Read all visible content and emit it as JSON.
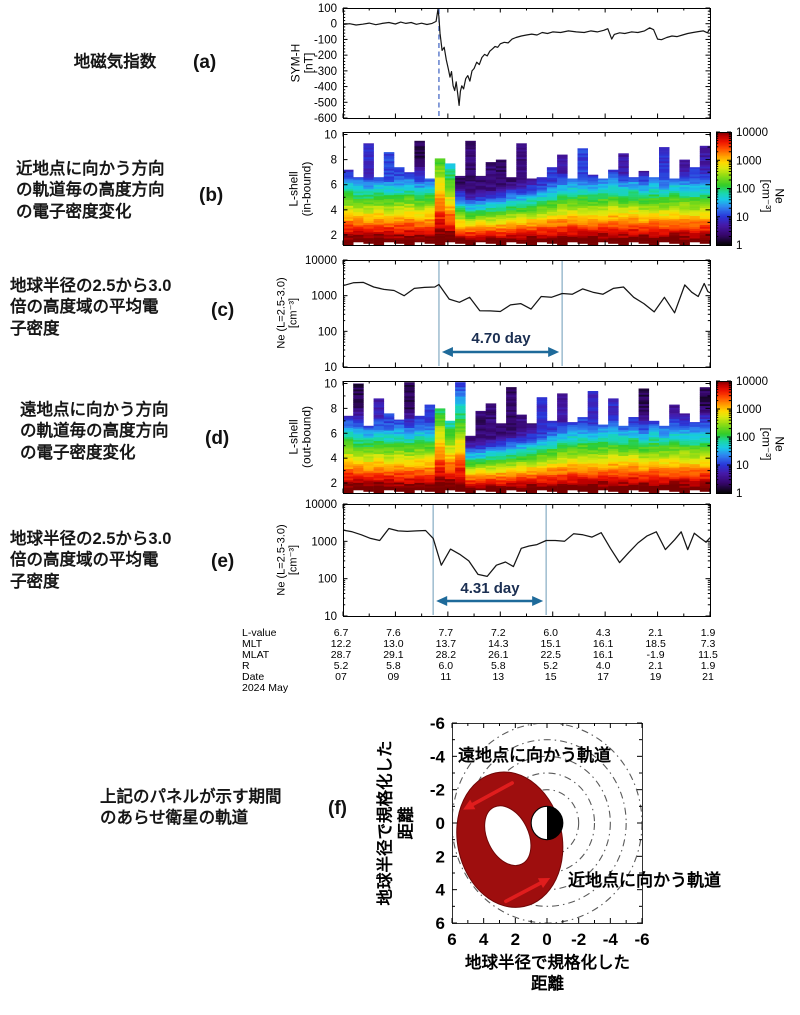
{
  "chart_data": {
    "panels": [
      {
        "id": "a",
        "type": "line",
        "letter": "(a)",
        "description": "地磁気指数",
        "ylabel": "SYM-H\n[nT]",
        "yticks": [
          100,
          0,
          -100,
          -200,
          -300,
          -400,
          -500,
          -600
        ],
        "ylim": [
          -600,
          100
        ],
        "x_range_days": [
          0,
          14
        ],
        "storm_onset_day": 3.66,
        "series_nT": [
          [
            0,
            -5
          ],
          [
            0.25,
            0
          ],
          [
            0.5,
            -8
          ],
          [
            0.75,
            -3
          ],
          [
            1,
            4
          ],
          [
            1.25,
            -6
          ],
          [
            1.5,
            2
          ],
          [
            1.75,
            8
          ],
          [
            2,
            -2
          ],
          [
            2.2,
            10
          ],
          [
            2.4,
            2
          ],
          [
            2.6,
            8
          ],
          [
            2.8,
            -4
          ],
          [
            3,
            3
          ],
          [
            3.2,
            -5
          ],
          [
            3.4,
            2
          ],
          [
            3.55,
            15
          ],
          [
            3.62,
            90
          ],
          [
            3.66,
            45
          ],
          [
            3.7,
            -60
          ],
          [
            3.78,
            -170
          ],
          [
            3.86,
            -150
          ],
          [
            3.94,
            -230
          ],
          [
            4.02,
            -290
          ],
          [
            4.08,
            -340
          ],
          [
            4.14,
            -305
          ],
          [
            4.2,
            -395
          ],
          [
            4.26,
            -425
          ],
          [
            4.32,
            -370
          ],
          [
            4.38,
            -450
          ],
          [
            4.43,
            -520
          ],
          [
            4.48,
            -430
          ],
          [
            4.53,
            -395
          ],
          [
            4.6,
            -415
          ],
          [
            4.68,
            -350
          ],
          [
            4.76,
            -330
          ],
          [
            4.84,
            -365
          ],
          [
            4.92,
            -300
          ],
          [
            5,
            -285
          ],
          [
            5.1,
            -245
          ],
          [
            5.2,
            -260
          ],
          [
            5.3,
            -215
          ],
          [
            5.4,
            -195
          ],
          [
            5.5,
            -205
          ],
          [
            5.6,
            -175
          ],
          [
            5.7,
            -160
          ],
          [
            5.8,
            -145
          ],
          [
            5.9,
            -150
          ],
          [
            6,
            -128
          ],
          [
            6.15,
            -118
          ],
          [
            6.3,
            -122
          ],
          [
            6.45,
            -98
          ],
          [
            6.6,
            -88
          ],
          [
            6.8,
            -78
          ],
          [
            7,
            -72
          ],
          [
            7.2,
            -66
          ],
          [
            7.4,
            -72
          ],
          [
            7.6,
            -56
          ],
          [
            7.8,
            -62
          ],
          [
            8,
            -52
          ],
          [
            8.3,
            -56
          ],
          [
            8.6,
            -46
          ],
          [
            8.9,
            -52
          ],
          [
            9.2,
            -56
          ],
          [
            9.45,
            -46
          ],
          [
            9.7,
            -52
          ],
          [
            9.95,
            -42
          ],
          [
            10.1,
            -32
          ],
          [
            10.25,
            -98
          ],
          [
            10.35,
            -68
          ],
          [
            10.55,
            -58
          ],
          [
            10.75,
            -62
          ],
          [
            11,
            -52
          ],
          [
            11.25,
            -56
          ],
          [
            11.5,
            -46
          ],
          [
            11.7,
            -26
          ],
          [
            11.85,
            -38
          ],
          [
            12,
            -98
          ],
          [
            12.15,
            -102
          ],
          [
            12.35,
            -88
          ],
          [
            12.55,
            -78
          ],
          [
            12.75,
            -82
          ],
          [
            12.95,
            -72
          ],
          [
            13.15,
            -62
          ],
          [
            13.35,
            -56
          ],
          [
            13.55,
            -50
          ],
          [
            13.75,
            -46
          ],
          [
            13.9,
            -58
          ],
          [
            14,
            -32
          ]
        ]
      },
      {
        "id": "b",
        "type": "heatmap",
        "letter": "(b)",
        "description": "近地点に向かう方向\nの軌道毎の高度方向\nの電子密度変化",
        "ylabel": "L-shell\n(in-bound)",
        "yticks": [
          2,
          4,
          6,
          8,
          10
        ],
        "ylim": [
          1.2,
          10.2
        ],
        "log10_Ne_range": [
          0,
          4
        ],
        "column_day_step": 0.389,
        "column_top_L": [
          7.2,
          6.6,
          9.3,
          6.6,
          8.6,
          7.4,
          7.0,
          9.5,
          6.5,
          8.1,
          7.7,
          6.7,
          9.5,
          6.7,
          7.8,
          8.0,
          6.6,
          9.3,
          6.5,
          6.6,
          7.4,
          8.4,
          6.5,
          8.9,
          6.8,
          6.5,
          7.2,
          8.5,
          6.6,
          7.1,
          6.6,
          9.0,
          6.5,
          8.0,
          7.4,
          9.1
        ],
        "column_slope": [
          0.58,
          0.6,
          0.62,
          0.59,
          0.61,
          0.6,
          0.58,
          0.62,
          0.6,
          0.32,
          0.42,
          0.85,
          0.95,
          0.9,
          0.88,
          0.85,
          0.8,
          0.78,
          0.74,
          0.7,
          0.66,
          0.63,
          0.61,
          0.6,
          0.62,
          0.6,
          0.58,
          0.62,
          0.6,
          0.63,
          0.6,
          0.62,
          0.58,
          0.6,
          0.62,
          0.6
        ]
      },
      {
        "id": "c",
        "type": "line",
        "letter": "(c)",
        "description": "地球半径の2.5から3.0\n倍の高度域の平均電\n子密度",
        "ylabel": "Ne (L=2.5-3.0)\n[cm⁻³]",
        "yticks": [
          10000,
          1000,
          100,
          10
        ],
        "ylim_log": [
          10,
          10000
        ],
        "marker_lines_days": [
          3.66,
          8.36
        ],
        "annotation": "4.70 day",
        "series_cm3": [
          [
            0,
            1900
          ],
          [
            0.39,
            2300
          ],
          [
            0.78,
            2350
          ],
          [
            1.17,
            1750
          ],
          [
            1.56,
            1500
          ],
          [
            1.95,
            1400
          ],
          [
            2.33,
            1000
          ],
          [
            2.72,
            1600
          ],
          [
            3.11,
            1700
          ],
          [
            3.5,
            1750
          ],
          [
            3.66,
            2050
          ],
          [
            4.05,
            800
          ],
          [
            4.44,
            650
          ],
          [
            4.83,
            900
          ],
          [
            5.22,
            380
          ],
          [
            5.61,
            375
          ],
          [
            6.0,
            360
          ],
          [
            6.39,
            550
          ],
          [
            6.78,
            600
          ],
          [
            7.17,
            420
          ],
          [
            7.56,
            950
          ],
          [
            7.95,
            900
          ],
          [
            8.36,
            1150
          ],
          [
            8.75,
            1100
          ],
          [
            9.14,
            1550
          ],
          [
            9.53,
            1250
          ],
          [
            9.92,
            1100
          ],
          [
            10.31,
            1600
          ],
          [
            10.7,
            1750
          ],
          [
            11.09,
            900
          ],
          [
            11.48,
            600
          ],
          [
            11.87,
            350
          ],
          [
            12.26,
            900
          ],
          [
            12.65,
            330
          ],
          [
            13.04,
            2000
          ],
          [
            13.3,
            1250
          ],
          [
            13.55,
            950
          ],
          [
            13.78,
            2200
          ],
          [
            13.92,
            1300
          ],
          [
            14,
            1200
          ]
        ]
      },
      {
        "id": "d",
        "type": "heatmap",
        "letter": "(d)",
        "description": "遠地点に向かう方向\nの軌道毎の高度方向\nの電子密度変化",
        "ylabel": "L-shell\n(out-bound)",
        "yticks": [
          2,
          4,
          6,
          8,
          10
        ],
        "ylim": [
          1.2,
          10.2
        ],
        "log10_Ne_range": [
          0,
          4
        ],
        "column_day_step": 0.389,
        "column_top_L": [
          7.4,
          10.0,
          6.6,
          8.8,
          7.6,
          7.1,
          10.1,
          7.4,
          8.3,
          8.0,
          7.0,
          10.1,
          5.8,
          7.8,
          8.4,
          6.8,
          9.7,
          7.5,
          6.8,
          8.9,
          7.0,
          9.2,
          6.9,
          7.3,
          9.4,
          6.7,
          8.8,
          6.6,
          7.3,
          9.6,
          7.0,
          6.6,
          8.3,
          7.6,
          6.9,
          9.7
        ],
        "column_slope": [
          0.55,
          0.58,
          0.6,
          0.57,
          0.59,
          0.58,
          0.6,
          0.57,
          0.58,
          0.35,
          0.45,
          0.38,
          0.95,
          0.92,
          0.88,
          0.85,
          0.82,
          0.78,
          0.74,
          0.7,
          0.66,
          0.63,
          0.6,
          0.58,
          0.6,
          0.58,
          0.57,
          0.6,
          0.58,
          0.62,
          0.58,
          0.6,
          0.57,
          0.58,
          0.6,
          0.58
        ]
      },
      {
        "id": "e",
        "type": "line",
        "letter": "(e)",
        "description": "地球半径の2.5から3.0\n倍の高度域の平均電\n子密度",
        "ylabel": "Ne (L=2.5-3.0)\n[cm⁻³]",
        "yticks": [
          10000,
          1000,
          100,
          10
        ],
        "ylim_log": [
          10,
          10000
        ],
        "marker_lines_days": [
          3.44,
          7.75
        ],
        "annotation": "4.31 day",
        "series_cm3": [
          [
            0,
            2000
          ],
          [
            0.35,
            1800
          ],
          [
            0.7,
            1500
          ],
          [
            1.05,
            1200
          ],
          [
            1.4,
            1050
          ],
          [
            1.75,
            2200
          ],
          [
            2.1,
            1900
          ],
          [
            2.45,
            1850
          ],
          [
            2.8,
            1900
          ],
          [
            3.15,
            1950
          ],
          [
            3.44,
            1200
          ],
          [
            3.75,
            230
          ],
          [
            4.1,
            620
          ],
          [
            4.45,
            450
          ],
          [
            4.8,
            300
          ],
          [
            5.15,
            130
          ],
          [
            5.5,
            115
          ],
          [
            5.85,
            230
          ],
          [
            6.2,
            280
          ],
          [
            6.5,
            210
          ],
          [
            6.8,
            650
          ],
          [
            7.1,
            750
          ],
          [
            7.4,
            820
          ],
          [
            7.75,
            1050
          ],
          [
            8.1,
            1050
          ],
          [
            8.45,
            1000
          ],
          [
            8.8,
            1600
          ],
          [
            9.15,
            1500
          ],
          [
            9.5,
            1300
          ],
          [
            9.85,
            1700
          ],
          [
            10.2,
            650
          ],
          [
            10.55,
            270
          ],
          [
            10.9,
            500
          ],
          [
            11.25,
            900
          ],
          [
            11.6,
            1400
          ],
          [
            11.95,
            1800
          ],
          [
            12.3,
            600
          ],
          [
            12.65,
            1100
          ],
          [
            12.9,
            1800
          ],
          [
            13.15,
            600
          ],
          [
            13.4,
            1650
          ],
          [
            13.65,
            1200
          ],
          [
            13.85,
            950
          ],
          [
            14,
            1250
          ]
        ]
      },
      {
        "id": "f",
        "type": "orbit-diagram",
        "letter": "(f)",
        "description": "上記のパネルが示す期間\nのあらせ衛星の軌道",
        "xlabel": "地球半径で規格化した\n距離",
        "ylabel": "地球半径で規格化した\n距離",
        "xticks": [
          6,
          4,
          2,
          0,
          -2,
          -4,
          -6
        ],
        "yticks": [
          -6,
          -4,
          -2,
          0,
          2,
          4,
          6
        ],
        "label_outbound": "遠地点に向かう軌道",
        "label_inbound": "近地点に向かう軌道",
        "lshell_circle_radii": [
          2,
          3,
          4,
          5,
          6
        ],
        "orbit_band": {
          "center_Re": [
            2.35,
            1.0
          ],
          "outer_Re": [
            3.3,
            4.1
          ],
          "hole_Re": [
            1.3,
            1.9
          ],
          "tilt_deg": -12
        },
        "arrows_Re": [
          {
            "from": [
              2.2,
              -2.4
            ],
            "to": [
              5.3,
              -0.8
            ]
          },
          {
            "from": [
              2.6,
              4.7
            ],
            "to": [
              -0.2,
              3.3
            ]
          }
        ]
      }
    ],
    "colorbar": {
      "ticks": [
        "10000",
        "1000",
        "100",
        "10",
        "1"
      ],
      "label": "Ne\n[cm⁻³]"
    },
    "axis_table": {
      "row_labels": [
        "L-value",
        "MLT",
        "MLAT",
        "R",
        "Date"
      ],
      "era_label": "2024 May",
      "columns_day": [
        0,
        2,
        4,
        6,
        8,
        10,
        12,
        14
      ],
      "rows": {
        "L-value": [
          "6.7",
          "7.6",
          "7.7",
          "7.2",
          "6.0",
          "4.3",
          "2.1",
          "1.9"
        ],
        "MLT": [
          "12.2",
          "13.0",
          "13.7",
          "14.3",
          "15.1",
          "16.1",
          "18.5",
          "7.3"
        ],
        "MLAT": [
          "28.7",
          "29.1",
          "28.2",
          "26.1",
          "22.5",
          "16.1",
          "-1.9",
          "11.5"
        ],
        "R": [
          "5.2",
          "5.8",
          "6.0",
          "5.8",
          "5.2",
          "4.0",
          "2.1",
          "1.9"
        ],
        "Date": [
          "07",
          "09",
          "11",
          "13",
          "15",
          "17",
          "19",
          "21"
        ]
      }
    },
    "colors": {
      "line": "#151515",
      "storm_dashed": "#3b5fc0",
      "marker_lines": "#9dbccf",
      "annotation_arrow": "#1e6a9a",
      "annotation_text": "#1b2f52",
      "orbit_band": "#9e0e0e",
      "orbit_arrow": "#e01d1d"
    }
  }
}
